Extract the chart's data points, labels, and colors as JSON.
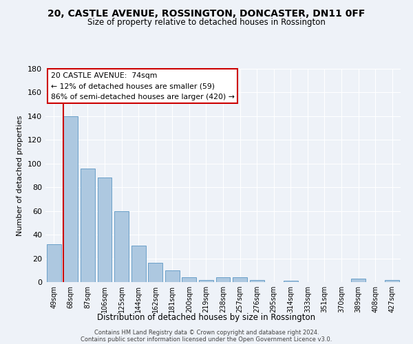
{
  "title": "20, CASTLE AVENUE, ROSSINGTON, DONCASTER, DN11 0FF",
  "subtitle": "Size of property relative to detached houses in Rossington",
  "xlabel": "Distribution of detached houses by size in Rossington",
  "ylabel": "Number of detached properties",
  "bar_color": "#adc8e0",
  "bar_edge_color": "#6aa0c8",
  "background_color": "#eef2f8",
  "grid_color": "#ffffff",
  "categories": [
    "49sqm",
    "68sqm",
    "87sqm",
    "106sqm",
    "125sqm",
    "144sqm",
    "162sqm",
    "181sqm",
    "200sqm",
    "219sqm",
    "238sqm",
    "257sqm",
    "276sqm",
    "295sqm",
    "314sqm",
    "333sqm",
    "351sqm",
    "370sqm",
    "389sqm",
    "408sqm",
    "427sqm"
  ],
  "values": [
    32,
    140,
    96,
    88,
    60,
    31,
    16,
    10,
    4,
    2,
    4,
    4,
    2,
    0,
    1,
    0,
    0,
    0,
    3,
    0,
    2
  ],
  "ylim": [
    0,
    180
  ],
  "yticks": [
    0,
    20,
    40,
    60,
    80,
    100,
    120,
    140,
    160,
    180
  ],
  "property_line_x": 1,
  "annotation_title": "20 CASTLE AVENUE:  74sqm",
  "annotation_line1": "← 12% of detached houses are smaller (59)",
  "annotation_line2": "86% of semi-detached houses are larger (420) →",
  "annotation_box_color": "#ffffff",
  "annotation_border_color": "#cc0000",
  "red_line_color": "#cc0000",
  "footer_line1": "Contains HM Land Registry data © Crown copyright and database right 2024.",
  "footer_line2": "Contains public sector information licensed under the Open Government Licence v3.0."
}
